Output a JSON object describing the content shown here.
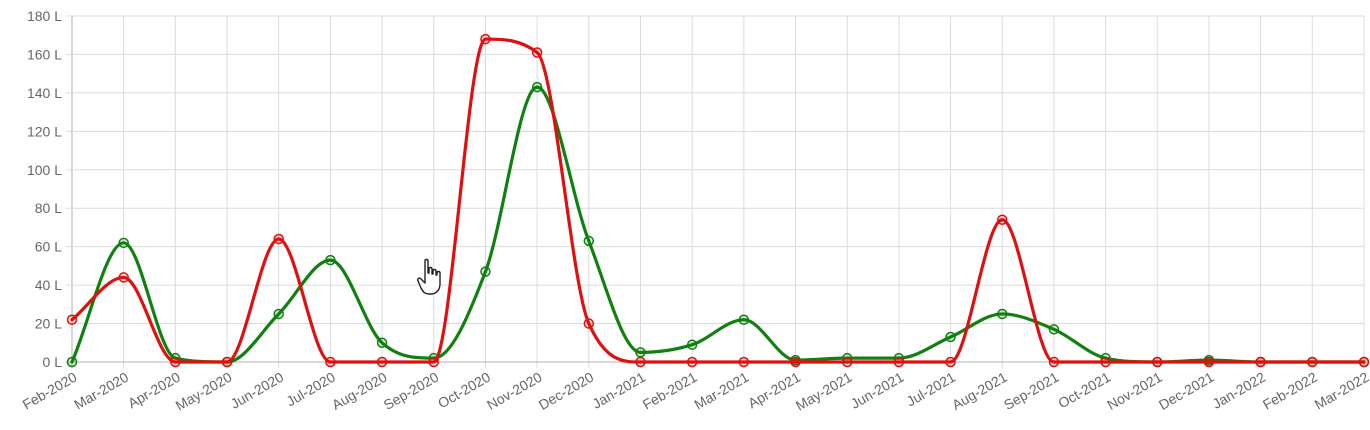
{
  "chart_data": {
    "type": "line",
    "title": "",
    "xlabel": "",
    "ylabel": "",
    "categories": [
      "Feb-2020",
      "Mar-2020",
      "Apr-2020",
      "May-2020",
      "Jun-2020",
      "Jul-2020",
      "Aug-2020",
      "Sep-2020",
      "Oct-2020",
      "Nov-2020",
      "Dec-2020",
      "Jan-2021",
      "Feb-2021",
      "Mar-2021",
      "Apr-2021",
      "May-2021",
      "Jun-2021",
      "Jul-2021",
      "Aug-2021",
      "Sep-2021",
      "Oct-2021",
      "Nov-2021",
      "Dec-2021",
      "Jan-2022",
      "Feb-2022",
      "Mar-2022"
    ],
    "ylim": [
      0,
      180
    ],
    "yticks": [
      0,
      20,
      40,
      60,
      80,
      100,
      120,
      140,
      160,
      180
    ],
    "ytick_suffix": " L",
    "grid": true,
    "series": [
      {
        "color": "#108010",
        "values": [
          0,
          62,
          2,
          0,
          25,
          53,
          10,
          2,
          47,
          143,
          63,
          5,
          9,
          22,
          1,
          2,
          2,
          13,
          25,
          17,
          2,
          0,
          1,
          0,
          0,
          0
        ]
      },
      {
        "color": "#e01010",
        "values": [
          22,
          44,
          0,
          0,
          64,
          0,
          0,
          0,
          168,
          161,
          20,
          0,
          0,
          0,
          0,
          0,
          0,
          0,
          74,
          0,
          0,
          0,
          0,
          0,
          0,
          0
        ]
      }
    ]
  },
  "cursor": {
    "icon": "hand-pointer-icon"
  }
}
